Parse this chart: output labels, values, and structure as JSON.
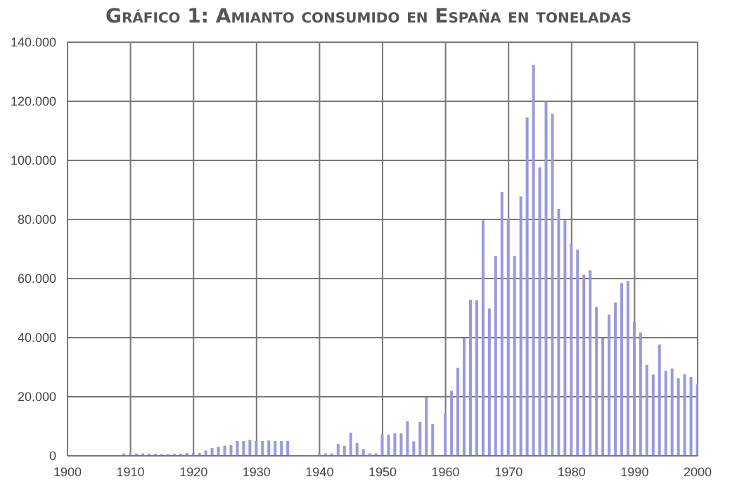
{
  "chart_data": {
    "type": "bar",
    "title": "Gráfico 1: Amianto consumido en España en toneladas",
    "x": [
      1909,
      1910,
      1911,
      1912,
      1913,
      1914,
      1915,
      1916,
      1917,
      1918,
      1919,
      1920,
      1921,
      1922,
      1923,
      1924,
      1925,
      1926,
      1927,
      1928,
      1929,
      1930,
      1931,
      1932,
      1933,
      1934,
      1935,
      1940,
      1941,
      1942,
      1943,
      1944,
      1945,
      1946,
      1947,
      1948,
      1949,
      1950,
      1951,
      1952,
      1953,
      1954,
      1955,
      1956,
      1957,
      1958,
      1960,
      1961,
      1962,
      1963,
      1964,
      1965,
      1966,
      1967,
      1968,
      1969,
      1970,
      1971,
      1972,
      1973,
      1974,
      1975,
      1976,
      1977,
      1978,
      1979,
      1980,
      1981,
      1982,
      1983,
      1984,
      1985,
      1986,
      1987,
      1988,
      1989,
      1990,
      1991,
      1992,
      1993,
      1994,
      1995,
      1996,
      1997,
      1998,
      1999,
      2000
    ],
    "series": [
      {
        "color": "#9999dd",
        "values": [
          800,
          800,
          800,
          800,
          700,
          700,
          600,
          600,
          700,
          700,
          1000,
          1000,
          1000,
          1800,
          2600,
          3100,
          3400,
          3600,
          5000,
          5000,
          5400,
          5000,
          5000,
          5200,
          5000,
          5000,
          5000,
          800,
          800,
          800,
          4000,
          3400,
          7800,
          4400,
          2300,
          800,
          800,
          7300,
          7200,
          7600,
          7600,
          11700,
          4900,
          11500,
          19800,
          10700,
          14500,
          22000,
          29800,
          39800,
          52800,
          52700,
          79700,
          49900,
          67600,
          89300,
          80300,
          67600,
          87800,
          114500,
          132400,
          97600,
          119800,
          115800,
          83600,
          79700,
          71900,
          69800,
          61300,
          62800,
          50400,
          39800,
          47800,
          51900,
          58500,
          59200,
          45400,
          41800,
          30700,
          27500,
          37700,
          28800,
          29600,
          26300,
          27600,
          26700,
          24200
        ]
      }
    ],
    "xlim": [
      1900,
      2000
    ],
    "xticks": [
      1900,
      1910,
      1920,
      1930,
      1940,
      1950,
      1960,
      1970,
      1980,
      1990,
      2000
    ],
    "ylim": [
      0,
      140000
    ],
    "yticks": [
      {
        "value": 0,
        "label": "0"
      },
      {
        "value": 20000,
        "label": "20.000"
      },
      {
        "value": 40000,
        "label": "40.000"
      },
      {
        "value": 60000,
        "label": "60.000"
      },
      {
        "value": 80000,
        "label": "80.000"
      },
      {
        "value": 100000,
        "label": "100.000"
      },
      {
        "value": 120000,
        "label": "120.000"
      },
      {
        "value": 140000,
        "label": "140.000"
      }
    ],
    "grid": true
  }
}
